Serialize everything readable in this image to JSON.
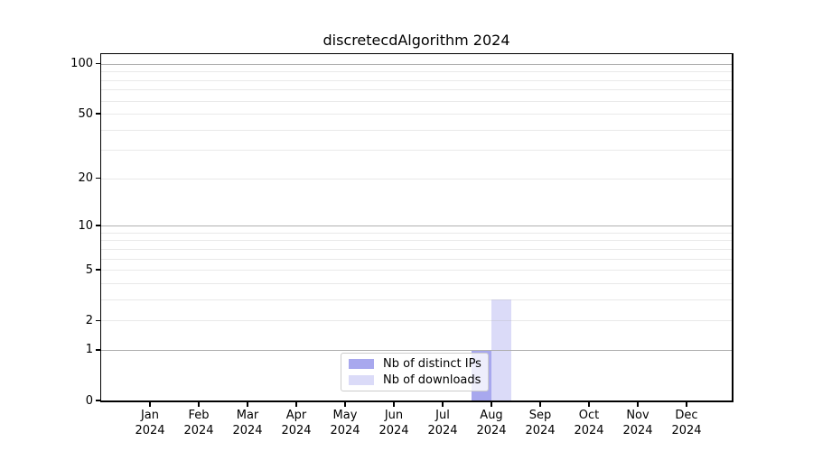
{
  "chart_data": {
    "type": "bar",
    "title": "discretecdAlgorithm 2024",
    "months": [
      "Jan",
      "Feb",
      "Mar",
      "Apr",
      "May",
      "Jun",
      "Jul",
      "Aug",
      "Sep",
      "Oct",
      "Nov",
      "Dec"
    ],
    "year_label": "2024",
    "categories": [
      "Jan 2024",
      "Feb 2024",
      "Mar 2024",
      "Apr 2024",
      "May 2024",
      "Jun 2024",
      "Jul 2024",
      "Aug 2024",
      "Sep 2024",
      "Oct 2024",
      "Nov 2024",
      "Dec 2024"
    ],
    "series": [
      {
        "name": "Nb of distinct IPs",
        "color": "#a8a8ee",
        "values": [
          0,
          0,
          0,
          0,
          0,
          0,
          0,
          1,
          0,
          0,
          0,
          0
        ]
      },
      {
        "name": "Nb of downloads",
        "color": "#dbdbf8",
        "values": [
          0,
          0,
          0,
          0,
          0,
          0,
          0,
          3,
          0,
          0,
          0,
          0
        ]
      }
    ],
    "xlabel": "",
    "ylabel": "",
    "yscale": "log10(1+y)",
    "yticks": [
      0,
      1,
      2,
      5,
      10,
      20,
      50,
      100
    ],
    "ylim": [
      0,
      115
    ],
    "grid_major": [
      1,
      10,
      100
    ],
    "grid_minor": [
      2,
      3,
      4,
      5,
      6,
      7,
      8,
      9,
      20,
      30,
      40,
      50,
      60,
      70,
      80,
      90
    ],
    "legend_position": "inside lower center-right",
    "colors": {
      "axis": "#000000",
      "grid": "#b0b0b0",
      "legend_border": "#cccccc",
      "background": "#ffffff"
    }
  },
  "legend": {
    "items": [
      {
        "label": "Nb of distinct IPs",
        "color": "#a8a8ee"
      },
      {
        "label": "Nb of downloads",
        "color": "#dbdbf8"
      }
    ]
  }
}
